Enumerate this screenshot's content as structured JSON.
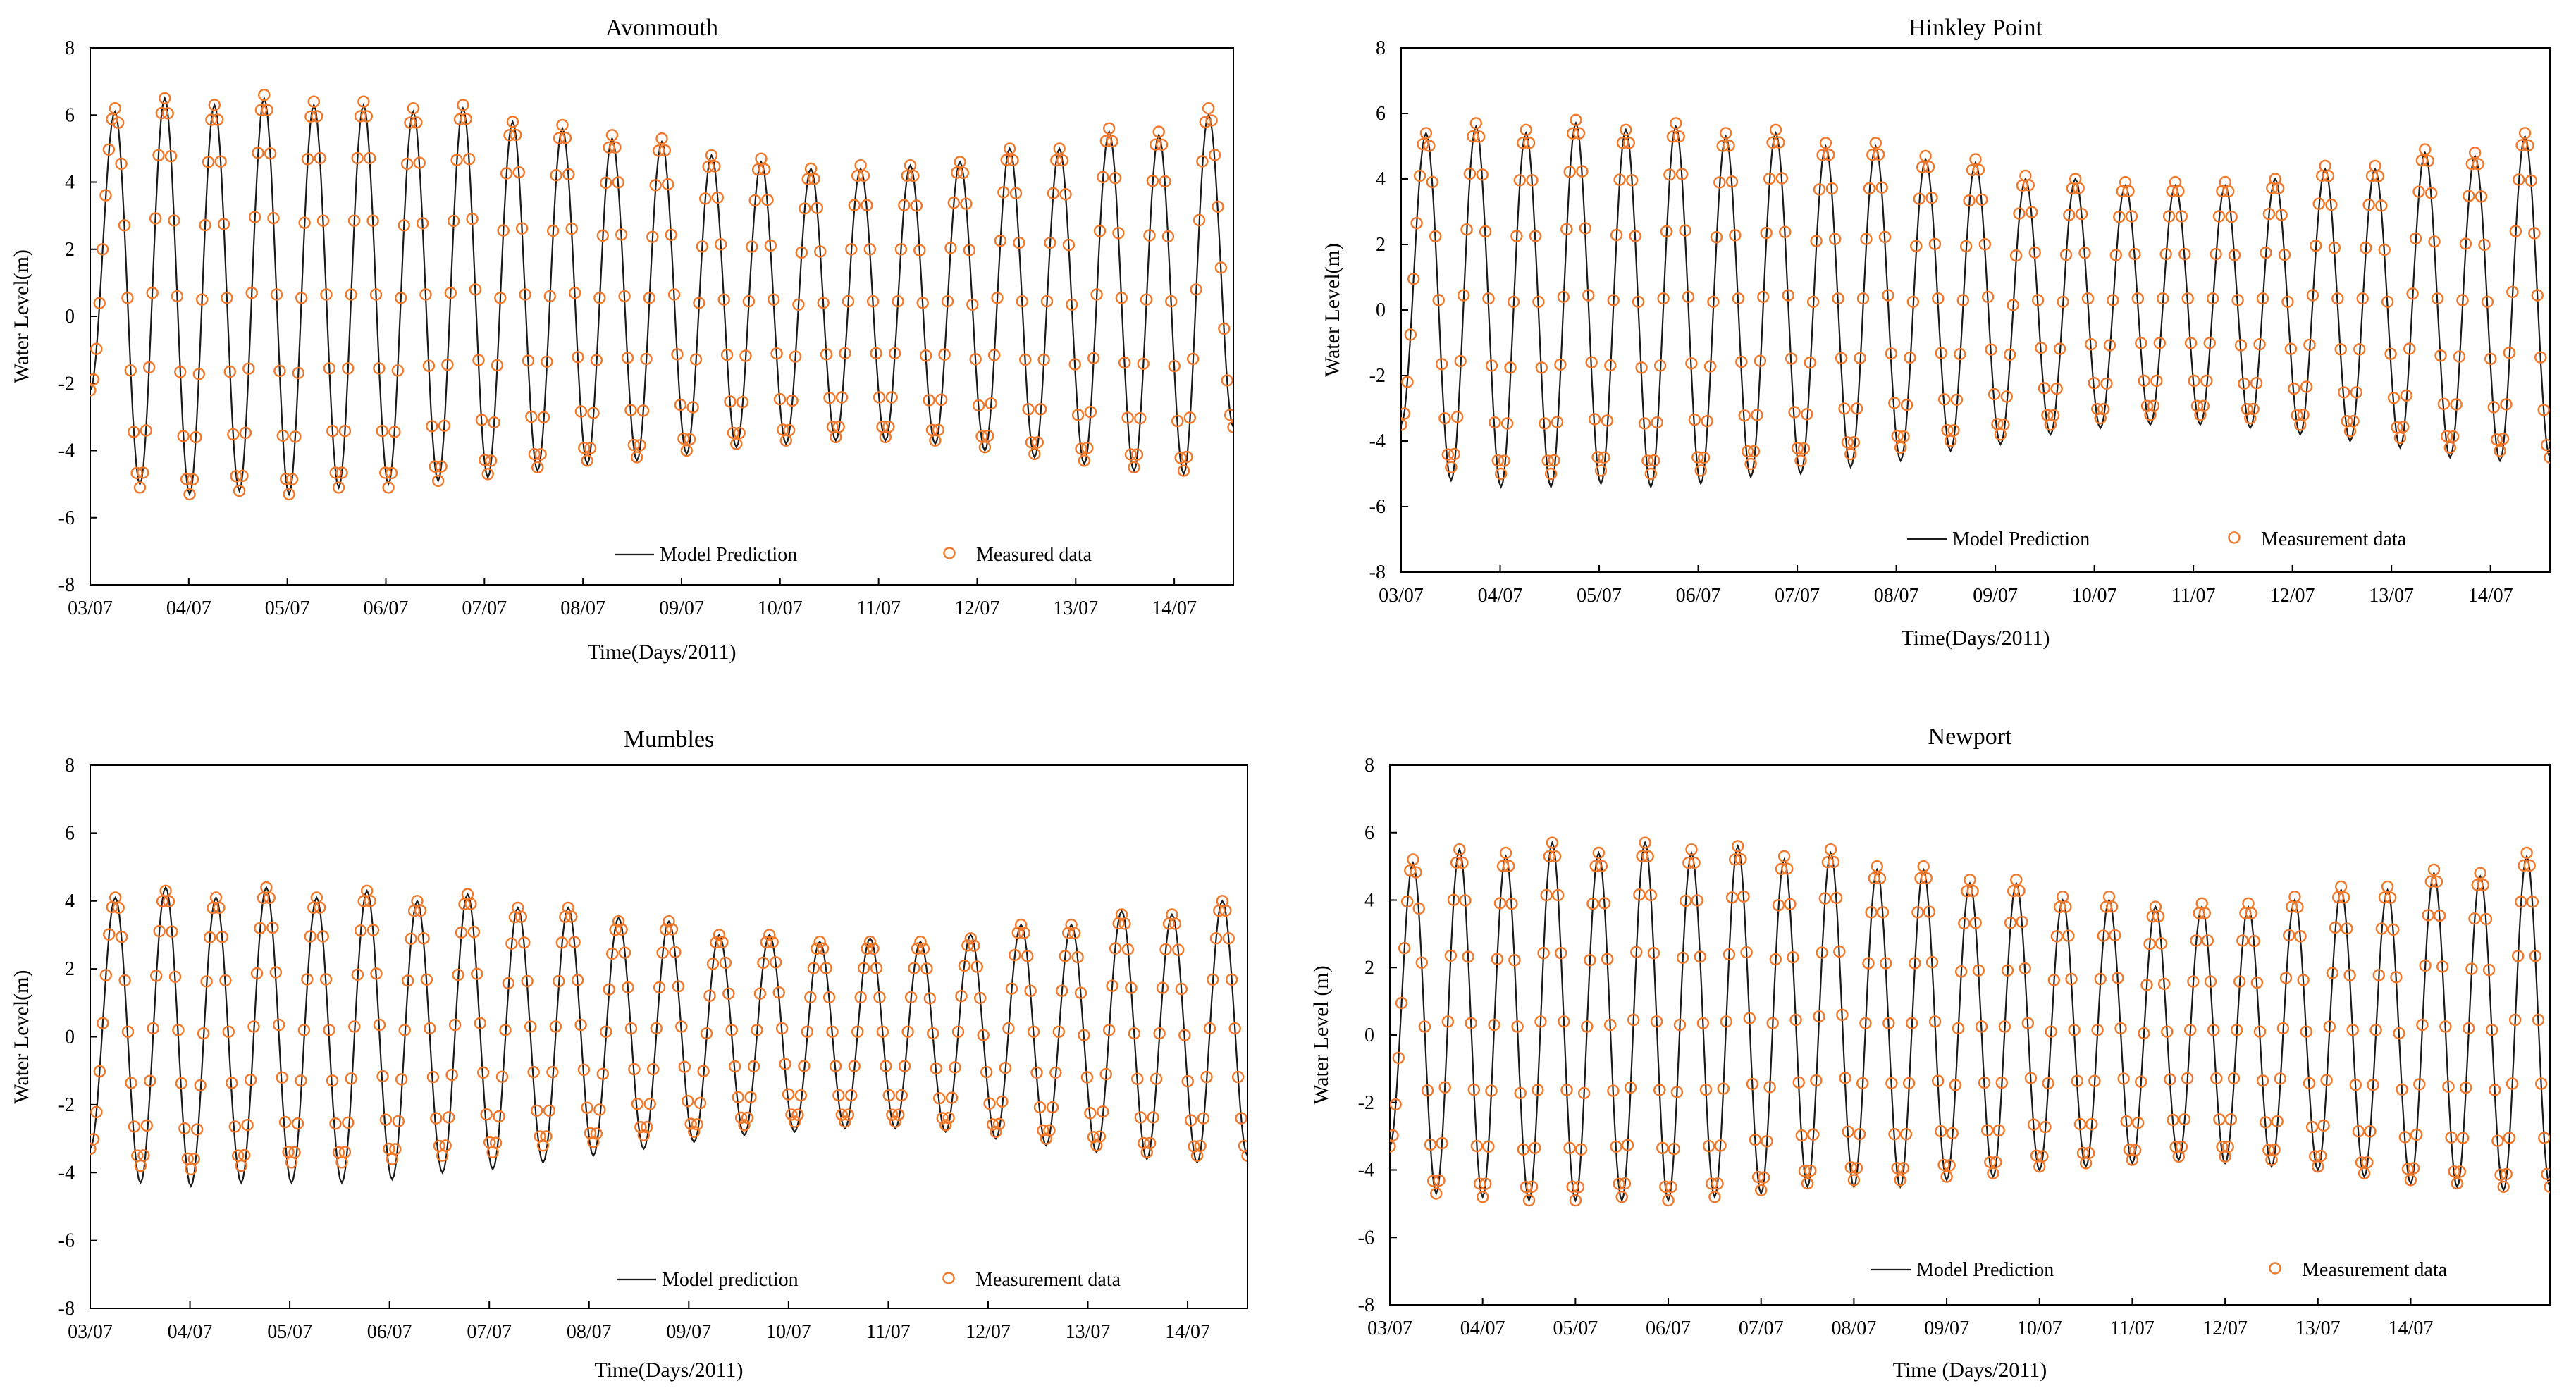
{
  "figure": {
    "colors": {
      "model": "#1a1a1a",
      "measured": "#f0782a",
      "frame": "#000000"
    }
  },
  "chart_data": [
    {
      "type": "line",
      "title": "Avonmouth",
      "xlabel": "Time(Days/2011)",
      "ylabel": "Water Level(m)",
      "x_ticks": [
        "03/07",
        "04/07",
        "05/07",
        "06/07",
        "07/07",
        "08/07",
        "09/07",
        "10/07",
        "11/07",
        "12/07",
        "13/07",
        "14/07"
      ],
      "x_range_days": [
        0,
        11.6
      ],
      "ylim": [
        -8,
        8
      ],
      "y_ticks": [
        -8,
        -6,
        -4,
        -2,
        0,
        2,
        4,
        6,
        8
      ],
      "legend_position": "bottom-right",
      "start_level": -2.2,
      "end_level": -3.3,
      "series": [
        {
          "name": "Model Prediction",
          "style": "line",
          "high_water": [
            6.1,
            6.5,
            6.3,
            6.5,
            6.3,
            6.3,
            6.1,
            6.2,
            5.8,
            5.6,
            5.3,
            5.2,
            4.8,
            4.6,
            4.4,
            4.4,
            4.5,
            4.6,
            5.0,
            5.0,
            5.5,
            5.4,
            6.0
          ],
          "low_water": [
            -5.0,
            -5.3,
            -5.2,
            -5.3,
            -5.1,
            -5.0,
            -4.9,
            -4.8,
            -4.6,
            -4.4,
            -4.3,
            -4.1,
            -3.9,
            -3.8,
            -3.7,
            -3.7,
            -3.8,
            -4.0,
            -4.2,
            -4.4,
            -4.6,
            -4.7
          ]
        },
        {
          "name": "Measured data",
          "style": "markers",
          "high_water": [
            6.2,
            6.5,
            6.3,
            6.6,
            6.4,
            6.4,
            6.2,
            6.3,
            5.8,
            5.7,
            5.4,
            5.3,
            4.8,
            4.7,
            4.4,
            4.5,
            4.5,
            4.6,
            5.0,
            5.0,
            5.6,
            5.5,
            6.2
          ],
          "low_water": [
            -5.1,
            -5.3,
            -5.2,
            -5.3,
            -5.1,
            -5.1,
            -4.9,
            -4.7,
            -4.5,
            -4.3,
            -4.2,
            -4.0,
            -3.8,
            -3.7,
            -3.6,
            -3.6,
            -3.7,
            -3.9,
            -4.1,
            -4.3,
            -4.5,
            -4.6
          ]
        }
      ]
    },
    {
      "type": "line",
      "title": "Hinkley Point",
      "xlabel": "Time(Days/2011)",
      "ylabel": "Water Level(m)",
      "x_ticks": [
        "03/07",
        "04/07",
        "05/07",
        "06/07",
        "07/07",
        "08/07",
        "09/07",
        "10/07",
        "11/07",
        "12/07",
        "13/07",
        "14/07"
      ],
      "x_range_days": [
        0,
        11.6
      ],
      "ylim": [
        -8,
        8
      ],
      "y_ticks": [
        -8,
        -6,
        -4,
        -2,
        0,
        2,
        4,
        6,
        8
      ],
      "legend_position": "bottom-right",
      "start_level": -3.5,
      "end_level": -4.5,
      "series": [
        {
          "name": "Model Prediction",
          "style": "line",
          "high_water": [
            5.4,
            5.6,
            5.4,
            5.7,
            5.5,
            5.6,
            5.3,
            5.4,
            5.0,
            5.0,
            4.6,
            4.5,
            4.0,
            4.0,
            3.8,
            3.8,
            3.8,
            4.0,
            4.3,
            4.3,
            4.8,
            4.7,
            5.3
          ],
          "low_water": [
            -5.2,
            -5.4,
            -5.4,
            -5.3,
            -5.4,
            -5.3,
            -5.1,
            -5.0,
            -4.8,
            -4.6,
            -4.3,
            -4.1,
            -3.8,
            -3.6,
            -3.5,
            -3.5,
            -3.6,
            -3.8,
            -4.0,
            -4.2,
            -4.5,
            -4.6
          ]
        },
        {
          "name": "Measurement data",
          "style": "markers",
          "high_water": [
            5.4,
            5.7,
            5.5,
            5.8,
            5.5,
            5.7,
            5.4,
            5.5,
            5.1,
            5.1,
            4.7,
            4.6,
            4.1,
            4.0,
            3.9,
            3.9,
            3.9,
            4.0,
            4.4,
            4.4,
            4.9,
            4.8,
            5.4
          ],
          "low_water": [
            -4.8,
            -5.0,
            -5.0,
            -4.9,
            -5.0,
            -4.9,
            -4.7,
            -4.6,
            -4.4,
            -4.2,
            -4.0,
            -3.8,
            -3.5,
            -3.3,
            -3.2,
            -3.2,
            -3.3,
            -3.5,
            -3.7,
            -3.9,
            -4.2,
            -4.3
          ]
        }
      ]
    },
    {
      "type": "line",
      "title": "Mumbles",
      "xlabel": "Time(Days/2011)",
      "ylabel": "Water Level(m)",
      "x_ticks": [
        "03/07",
        "04/07",
        "05/07",
        "06/07",
        "07/07",
        "08/07",
        "09/07",
        "10/07",
        "11/07",
        "12/07",
        "13/07",
        "14/07"
      ],
      "x_range_days": [
        0,
        11.6
      ],
      "ylim": [
        -8,
        8
      ],
      "y_ticks": [
        -8,
        -6,
        -4,
        -2,
        0,
        2,
        4,
        6,
        8
      ],
      "legend_position": "bottom-right",
      "start_level": -3.3,
      "end_level": -3.5,
      "series": [
        {
          "name": "Model prediction",
          "style": "line",
          "high_water": [
            4.1,
            4.4,
            4.1,
            4.4,
            4.1,
            4.3,
            4.0,
            4.2,
            3.8,
            3.8,
            3.5,
            3.4,
            3.0,
            3.0,
            2.8,
            2.9,
            2.8,
            3.0,
            3.3,
            3.3,
            3.7,
            3.6,
            4.0
          ],
          "low_water": [
            -4.3,
            -4.4,
            -4.3,
            -4.3,
            -4.3,
            -4.2,
            -4.0,
            -3.9,
            -3.7,
            -3.5,
            -3.3,
            -3.1,
            -2.9,
            -2.8,
            -2.7,
            -2.7,
            -2.8,
            -3.0,
            -3.2,
            -3.4,
            -3.6,
            -3.7
          ]
        },
        {
          "name": "Measurement data",
          "style": "markers",
          "high_water": [
            4.1,
            4.3,
            4.1,
            4.4,
            4.1,
            4.3,
            4.0,
            4.2,
            3.8,
            3.8,
            3.4,
            3.4,
            3.0,
            3.0,
            2.8,
            2.8,
            2.8,
            2.9,
            3.3,
            3.3,
            3.6,
            3.6,
            4.0
          ],
          "low_water": [
            -3.8,
            -3.9,
            -3.8,
            -3.7,
            -3.7,
            -3.6,
            -3.5,
            -3.4,
            -3.2,
            -3.1,
            -2.9,
            -2.8,
            -2.6,
            -2.5,
            -2.5,
            -2.5,
            -2.6,
            -2.8,
            -3.0,
            -3.2,
            -3.4,
            -3.5
          ]
        }
      ]
    },
    {
      "type": "line",
      "title": "Newport",
      "xlabel": "Time (Days/2011)",
      "ylabel": "Water Level (m)",
      "x_ticks": [
        "03/07",
        "04/07",
        "05/07",
        "06/07",
        "07/07",
        "08/07",
        "09/07",
        "10/07",
        "11/07",
        "12/07",
        "13/07",
        "14/07"
      ],
      "x_range_days": [
        0,
        12.5
      ],
      "ylim": [
        -8,
        8
      ],
      "y_ticks": [
        -8,
        -6,
        -4,
        -2,
        0,
        2,
        4,
        6,
        8
      ],
      "legend_position": "bottom-right",
      "start_level": -3.3,
      "end_level": -4.5,
      "series": [
        {
          "name": "Model Prediction",
          "style": "line",
          "high_water": [
            5.1,
            5.5,
            5.3,
            5.7,
            5.4,
            5.7,
            5.4,
            5.6,
            5.2,
            5.4,
            4.9,
            4.9,
            4.5,
            4.5,
            4.0,
            4.0,
            3.8,
            3.8,
            3.8,
            4.0,
            4.3,
            4.3,
            4.8,
            4.7,
            5.3
          ],
          "low_water": [
            -4.7,
            -4.8,
            -4.9,
            -4.9,
            -4.9,
            -4.9,
            -4.8,
            -4.7,
            -4.5,
            -4.5,
            -4.5,
            -4.3,
            -4.2,
            -4.0,
            -3.9,
            -3.8,
            -3.7,
            -3.8,
            -3.9,
            -4.0,
            -4.2,
            -4.4,
            -4.5,
            -4.6
          ]
        },
        {
          "name": "Measurement data",
          "style": "markers",
          "high_water": [
            5.2,
            5.5,
            5.4,
            5.7,
            5.4,
            5.7,
            5.5,
            5.6,
            5.3,
            5.5,
            5.0,
            5.0,
            4.6,
            4.6,
            4.1,
            4.1,
            3.8,
            3.9,
            3.9,
            4.1,
            4.4,
            4.4,
            4.9,
            4.8,
            5.4
          ],
          "low_water": [
            -4.7,
            -4.8,
            -4.9,
            -4.9,
            -4.8,
            -4.9,
            -4.8,
            -4.6,
            -4.4,
            -4.3,
            -4.3,
            -4.2,
            -4.1,
            -3.9,
            -3.8,
            -3.7,
            -3.6,
            -3.6,
            -3.7,
            -3.9,
            -4.1,
            -4.3,
            -4.4,
            -4.5
          ]
        }
      ]
    }
  ]
}
